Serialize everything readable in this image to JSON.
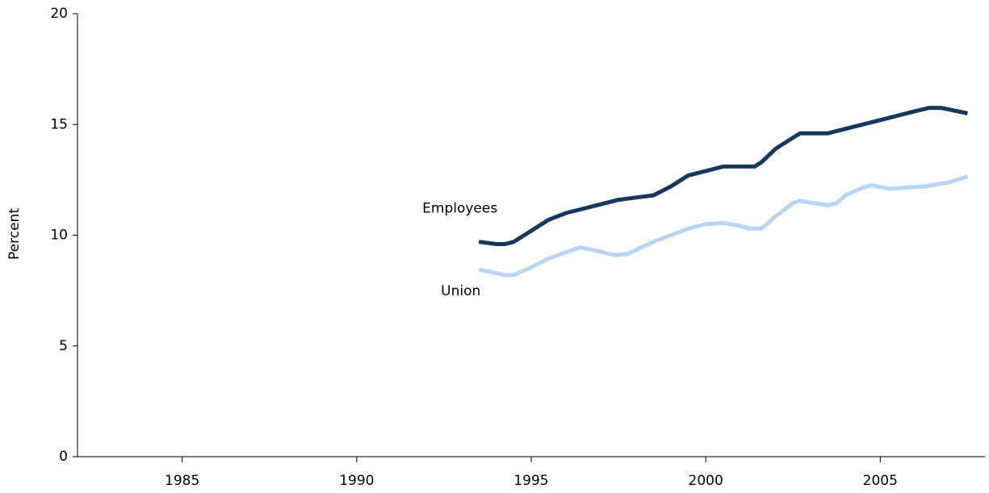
{
  "chart_data": {
    "type": "line",
    "y_label": "Percent",
    "xlim": [
      1982,
      2008
    ],
    "xticks": [
      1985,
      1990,
      1995,
      2000,
      2005
    ],
    "ylim": [
      0,
      20
    ],
    "yticks": [
      0,
      5,
      10,
      15,
      20
    ],
    "grid": false,
    "series": [
      {
        "name": "Employees",
        "color": "#17375e",
        "x": [
          1993.5,
          1994,
          1994.25,
          1994.5,
          1995,
          1995.5,
          1996,
          1997,
          1997.5,
          1998,
          1998.5,
          1999,
          1999.5,
          2000,
          2000.5,
          2001,
          2001.4,
          2001.6,
          2002,
          2002.5,
          2002.7,
          2003.5,
          2004,
          2005,
          2006,
          2006.4,
          2006.75,
          2007.5
        ],
        "values": [
          9.7,
          9.6,
          9.6,
          9.7,
          10.2,
          10.7,
          11.0,
          11.4,
          11.6,
          11.7,
          11.8,
          12.2,
          12.7,
          12.9,
          13.1,
          13.1,
          13.1,
          13.3,
          13.9,
          14.4,
          14.6,
          14.6,
          14.8,
          15.2,
          15.6,
          15.75,
          15.75,
          15.5
        ]
      },
      {
        "name": "Union",
        "color": "#b9d5f2",
        "x": [
          1993.5,
          1994.25,
          1994.5,
          1995,
          1995.5,
          1996.4,
          1997,
          1997.4,
          1997.75,
          1998.5,
          1999.5,
          2000,
          2000.5,
          2000.9,
          2001.25,
          2001.6,
          2002,
          2002.5,
          2002.7,
          2003.5,
          2003.75,
          2004,
          2004.5,
          2004.75,
          2005.25,
          2006.25,
          2007,
          2007.5
        ],
        "values": [
          8.45,
          8.2,
          8.2,
          8.55,
          8.95,
          9.45,
          9.25,
          9.1,
          9.15,
          9.7,
          10.3,
          10.5,
          10.55,
          10.45,
          10.3,
          10.3,
          10.85,
          11.45,
          11.55,
          11.35,
          11.45,
          11.8,
          12.15,
          12.25,
          12.1,
          12.2,
          12.4,
          12.65
        ]
      }
    ]
  }
}
